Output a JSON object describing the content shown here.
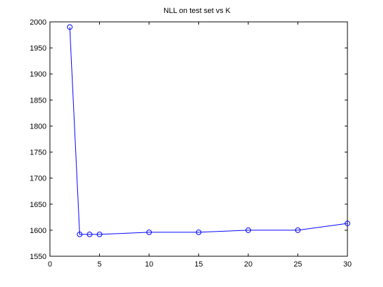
{
  "chart_data": {
    "type": "line",
    "title": "NLL on test set vs K",
    "xlabel": "",
    "ylabel": "",
    "xlim": [
      0,
      30
    ],
    "ylim": [
      1550,
      2000
    ],
    "xticks": [
      0,
      5,
      10,
      15,
      20,
      25,
      30
    ],
    "yticks": [
      1550,
      1600,
      1650,
      1700,
      1750,
      1800,
      1850,
      1900,
      1950,
      2000
    ],
    "grid": false,
    "legend": "none",
    "series": [
      {
        "x": [
          2,
          3,
          4,
          5,
          10,
          15,
          20,
          25,
          30
        ],
        "y": [
          1990,
          1592,
          1592,
          1592,
          1596,
          1596,
          1600,
          1600,
          1613
        ],
        "color": "#0000ff",
        "marker": "circle"
      }
    ]
  }
}
